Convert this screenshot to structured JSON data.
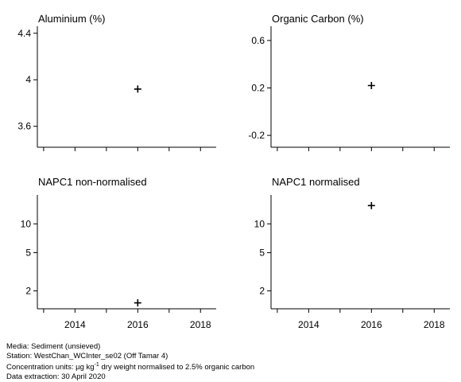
{
  "chart_data": [
    {
      "type": "scatter",
      "title": "Aluminium (%)",
      "y_ticks": [
        3.6,
        4.0,
        4.4
      ],
      "ylim": [
        3.42,
        4.46
      ],
      "x_ticks": [
        2014,
        2016,
        2018
      ],
      "x_tick_labels_shown": false,
      "xlim": [
        2012.8,
        2018.5
      ],
      "points": [
        {
          "x": 2016,
          "y": 3.92
        }
      ]
    },
    {
      "type": "scatter",
      "title": "Organic Carbon (%)",
      "y_ticks": [
        -0.2,
        0.2,
        0.6
      ],
      "ylim": [
        -0.3,
        0.72
      ],
      "x_ticks": [
        2014,
        2016,
        2018
      ],
      "x_tick_labels_shown": false,
      "xlim": [
        2012.8,
        2018.5
      ],
      "points": [
        {
          "x": 2016,
          "y": 0.22
        }
      ]
    },
    {
      "type": "scatter",
      "title": "NAPC1 non-normalised",
      "y_scale": "log",
      "y_ticks": [
        2,
        5,
        10
      ],
      "ylim": [
        1.3,
        20
      ],
      "x_ticks": [
        2014,
        2016,
        2018
      ],
      "x_tick_labels_shown": true,
      "xlim": [
        2012.8,
        2018.5
      ],
      "points": [
        {
          "x": 2016,
          "y": 1.5
        }
      ]
    },
    {
      "type": "scatter",
      "title": "NAPC1 normalised",
      "y_scale": "log",
      "y_ticks": [
        2,
        5,
        10
      ],
      "ylim": [
        1.3,
        20
      ],
      "x_ticks": [
        2014,
        2016,
        2018
      ],
      "x_tick_labels_shown": true,
      "xlim": [
        2012.8,
        2018.5
      ],
      "points": [
        {
          "x": 2016,
          "y": 15.5
        }
      ]
    }
  ],
  "footer": {
    "media": "Media: Sediment (unsieved)",
    "station": "Station: WestChan_WCInter_se02 (Off Tamar 4)",
    "units_prefix": "Concentration units:  µg kg",
    "units_sup": "-1",
    "units_suffix": " dry weight normalised to 2.5% organic carbon",
    "extraction": "Data extraction: 30 April 2020"
  }
}
